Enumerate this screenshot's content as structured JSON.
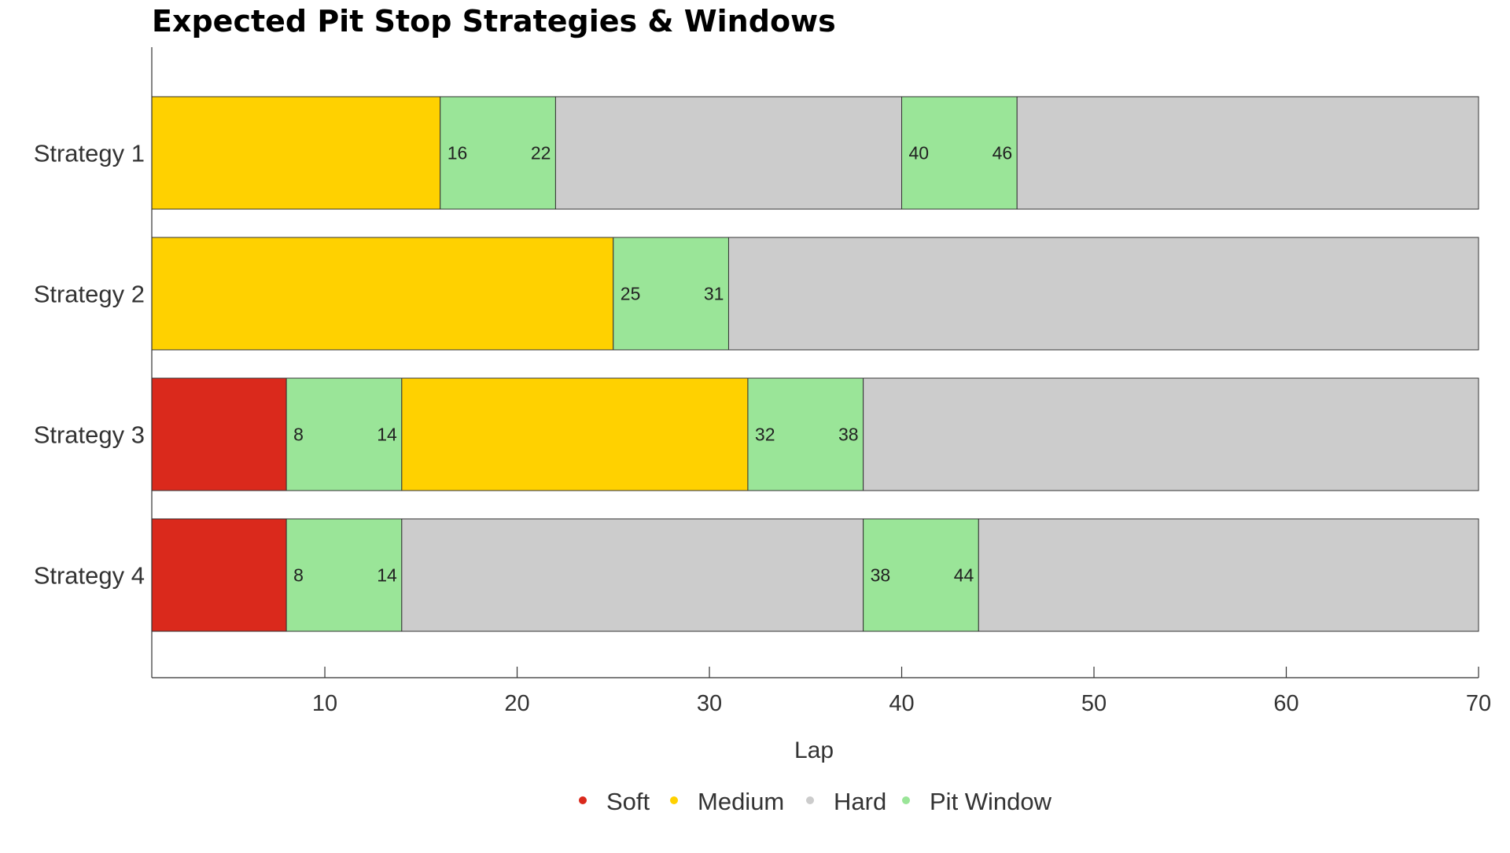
{
  "chart_data": {
    "type": "bar",
    "orientation": "horizontal-stacked",
    "title": "Expected Pit Stop Strategies & Windows",
    "xlabel": "Lap",
    "ylabel": "",
    "xlim": [
      1,
      70
    ],
    "xticks": [
      10,
      20,
      30,
      40,
      50,
      60,
      70
    ],
    "grid": false,
    "legend_position": "bottom-center",
    "legend": [
      {
        "key": "soft",
        "label": "Soft",
        "color": "#DA291C"
      },
      {
        "key": "medium",
        "label": "Medium",
        "color": "#FFD100"
      },
      {
        "key": "hard",
        "label": "Hard",
        "color": "#CCCCCC"
      },
      {
        "key": "pit",
        "label": "Pit Window",
        "color": "#9AE598"
      }
    ],
    "categories": [
      "Strategy 1",
      "Strategy 2",
      "Strategy 3",
      "Strategy 4"
    ],
    "strategies": [
      {
        "name": "Strategy 1",
        "segments": [
          {
            "type": "medium",
            "start": 1,
            "end": 16
          },
          {
            "type": "pit",
            "start": 16,
            "end": 22
          },
          {
            "type": "hard",
            "start": 22,
            "end": 40
          },
          {
            "type": "pit",
            "start": 40,
            "end": 46
          },
          {
            "type": "hard",
            "start": 46,
            "end": 70
          }
        ]
      },
      {
        "name": "Strategy 2",
        "segments": [
          {
            "type": "medium",
            "start": 1,
            "end": 25
          },
          {
            "type": "pit",
            "start": 25,
            "end": 31
          },
          {
            "type": "hard",
            "start": 31,
            "end": 70
          }
        ]
      },
      {
        "name": "Strategy 3",
        "segments": [
          {
            "type": "soft",
            "start": 1,
            "end": 8
          },
          {
            "type": "pit",
            "start": 8,
            "end": 14
          },
          {
            "type": "medium",
            "start": 14,
            "end": 32
          },
          {
            "type": "pit",
            "start": 32,
            "end": 38
          },
          {
            "type": "hard",
            "start": 38,
            "end": 70
          }
        ]
      },
      {
        "name": "Strategy 4",
        "segments": [
          {
            "type": "soft",
            "start": 1,
            "end": 8
          },
          {
            "type": "pit",
            "start": 8,
            "end": 14
          },
          {
            "type": "hard",
            "start": 14,
            "end": 38
          },
          {
            "type": "pit",
            "start": 38,
            "end": 44
          },
          {
            "type": "hard",
            "start": 44,
            "end": 70
          }
        ]
      }
    ]
  }
}
